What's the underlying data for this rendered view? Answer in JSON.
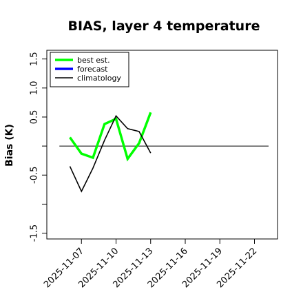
{
  "chart_data": {
    "type": "line",
    "title": "BIAS, layer 4 temperature",
    "xlabel": "",
    "ylabel": "Bias (K)",
    "ylim": [
      -1.6,
      1.65
    ],
    "xlim": [
      "2025-11-04",
      "2025-11-24"
    ],
    "y_ticks": [
      -1.5,
      -1.0,
      -0.5,
      0.0,
      0.5,
      1.0,
      1.5
    ],
    "y_tick_labels": [
      "-1.5",
      "",
      "-0.5",
      "",
      "0.5",
      "1.0",
      "1.5"
    ],
    "x_ticks": [
      "2025-11-07",
      "2025-11-10",
      "2025-11-13",
      "2025-11-16",
      "2025-11-19",
      "2025-11-22"
    ],
    "x_tick_labels": [
      "2025-11-07",
      "2025-11-10",
      "2025-11-13",
      "2025-11-16",
      "2025-11-19",
      "2025-11-22"
    ],
    "x_tick_colors": [
      "#000000",
      "#000000",
      "#228b22",
      "#000000",
      "#000000",
      "#000000"
    ],
    "zero_line": 0.0,
    "grid": false,
    "legend": "top-left",
    "series": [
      {
        "name": "best est.",
        "color": "#00ff00",
        "x": [
          "2025-11-06",
          "2025-11-07",
          "2025-11-08",
          "2025-11-09",
          "2025-11-10",
          "2025-11-11",
          "2025-11-12",
          "2025-11-13"
        ],
        "y": [
          0.15,
          -0.13,
          -0.2,
          0.38,
          0.47,
          -0.22,
          0.05,
          0.58
        ]
      },
      {
        "name": "forecast",
        "color": "#0000ff",
        "x": [],
        "y": []
      },
      {
        "name": "climatology",
        "color": "#000000",
        "x": [
          "2025-11-06",
          "2025-11-07",
          "2025-11-08",
          "2025-11-09",
          "2025-11-10",
          "2025-11-11",
          "2025-11-12",
          "2025-11-13"
        ],
        "y": [
          -0.35,
          -0.78,
          -0.38,
          0.1,
          0.52,
          0.3,
          0.25,
          -0.12
        ]
      }
    ]
  }
}
